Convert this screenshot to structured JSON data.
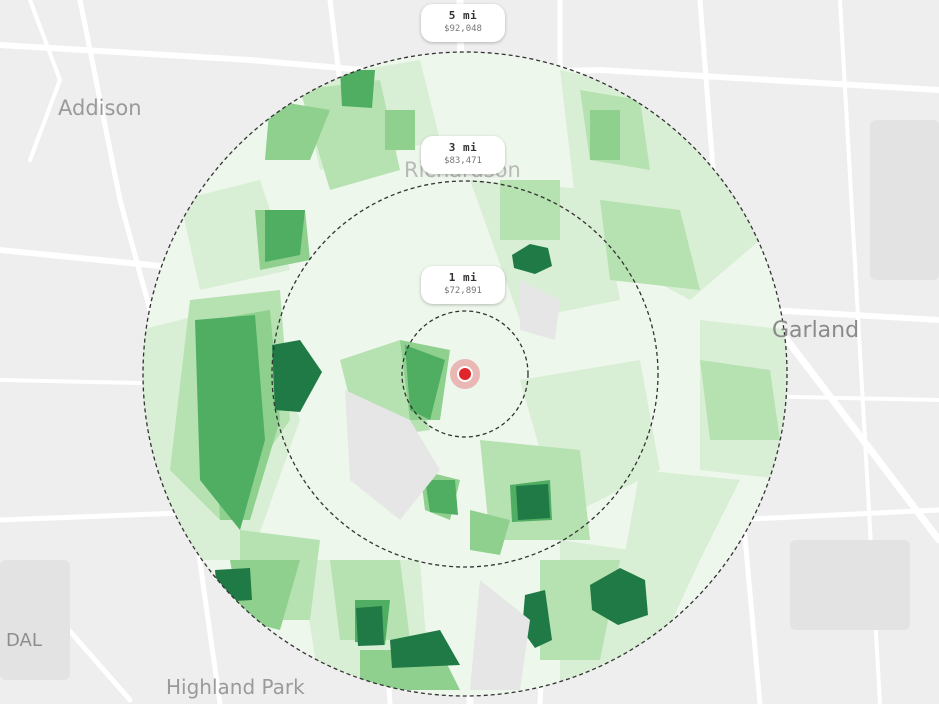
{
  "places": {
    "addison": "Addison",
    "richardson": "Richardson",
    "garland": "Garland",
    "dal": "DAL",
    "highland_park": "Highland Park"
  },
  "rings": [
    {
      "distance": "5 mi",
      "income": "$92,048"
    },
    {
      "distance": "3 mi",
      "income": "$83,471"
    },
    {
      "distance": "1 mi",
      "income": "$72,891"
    }
  ],
  "colors": {
    "background": "#eeeeef",
    "choropleth_light": "#d9efd5",
    "choropleth_mid": "#8fd08f",
    "choropleth_dark": "#1f7a45",
    "center_marker": "#e0262a"
  },
  "icons": {
    "center": "location-pin-icon"
  }
}
